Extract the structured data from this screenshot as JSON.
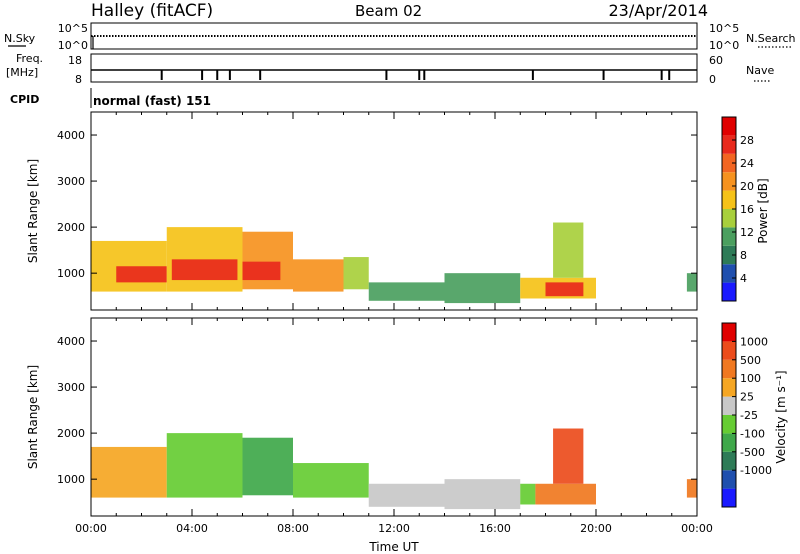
{
  "header": {
    "station": "Halley (fitACF)",
    "beam": "Beam 02",
    "date": "23/Apr/2014"
  },
  "nsky_panel": {
    "left_label": "N.Sky",
    "left_ticks": [
      "10^5",
      "10^0"
    ],
    "right_label": "N.Search",
    "right_ticks": [
      "10^5",
      "10^0"
    ]
  },
  "freq_panel": {
    "left_label_1": "Freq.",
    "left_label_2": "[MHz]",
    "left_ticks": [
      "18",
      "8"
    ],
    "right_label": "Nave",
    "right_ticks": [
      "60",
      "0"
    ]
  },
  "cpid": {
    "label": "CPID",
    "value": "normal (fast) 151"
  },
  "colors": {
    "power": [
      "#1a1aff",
      "#1f4fae",
      "#2e7b57",
      "#4b9f5f",
      "#a8cf3c",
      "#f5c218",
      "#f6921f",
      "#f26522",
      "#e8291c",
      "#e00000"
    ],
    "velocity": [
      "#1a1aff",
      "#1f4fae",
      "#2e7b57",
      "#3fa84a",
      "#66cc33",
      "#c8c8c8",
      "#f5a623",
      "#f07820",
      "#ec4c1c",
      "#e00000"
    ]
  },
  "chart_data": [
    {
      "type": "heatmap",
      "name": "power",
      "ylabel": "Slant Range [km]",
      "ylim": [
        200,
        4500
      ],
      "yticks": [
        "1000",
        "2000",
        "3000",
        "4000"
      ],
      "xlim": [
        0,
        24
      ],
      "colorbar": {
        "label": "Power [dB]",
        "ticks": [
          "28",
          "24",
          "20",
          "16",
          "12",
          "8",
          "4"
        ],
        "range": [
          0,
          32
        ]
      },
      "regions": [
        {
          "t0": 0.0,
          "t1": 3.0,
          "r0": 600,
          "r1": 1700,
          "level": 5
        },
        {
          "t0": 1.0,
          "t1": 3.0,
          "r0": 800,
          "r1": 1150,
          "level": 8
        },
        {
          "t0": 3.0,
          "t1": 6.0,
          "r0": 600,
          "r1": 2000,
          "level": 5
        },
        {
          "t0": 3.2,
          "t1": 5.8,
          "r0": 850,
          "r1": 1300,
          "level": 8
        },
        {
          "t0": 6.0,
          "t1": 8.0,
          "r0": 650,
          "r1": 1900,
          "level": 6
        },
        {
          "t0": 6.0,
          "t1": 7.5,
          "r0": 850,
          "r1": 1250,
          "level": 8
        },
        {
          "t0": 8.0,
          "t1": 10.0,
          "r0": 600,
          "r1": 1300,
          "level": 6
        },
        {
          "t0": 10.0,
          "t1": 11.0,
          "r0": 650,
          "r1": 1350,
          "level": 4
        },
        {
          "t0": 11.0,
          "t1": 14.0,
          "r0": 400,
          "r1": 800,
          "level": 3
        },
        {
          "t0": 14.0,
          "t1": 17.0,
          "r0": 350,
          "r1": 1000,
          "level": 3
        },
        {
          "t0": 17.0,
          "t1": 20.0,
          "r0": 450,
          "r1": 900,
          "level": 5
        },
        {
          "t0": 18.0,
          "t1": 19.5,
          "r0": 500,
          "r1": 800,
          "level": 8
        },
        {
          "t0": 18.3,
          "t1": 19.5,
          "r0": 900,
          "r1": 2100,
          "level": 4
        },
        {
          "t0": 23.6,
          "t1": 24.0,
          "r0": 600,
          "r1": 1000,
          "level": 3
        }
      ]
    },
    {
      "type": "heatmap",
      "name": "velocity",
      "ylabel": "Slant Range [km]",
      "xlabel": "Time UT",
      "ylim": [
        200,
        4500
      ],
      "yticks": [
        "1000",
        "2000",
        "3000",
        "4000"
      ],
      "xlim": [
        0,
        24
      ],
      "xticks": [
        "00:00",
        "04:00",
        "08:00",
        "12:00",
        "16:00",
        "20:00",
        "00:00"
      ],
      "colorbar": {
        "label": "Velocity [m s⁻¹]",
        "ticks": [
          "1000",
          "500",
          "100",
          "25",
          "-25",
          "-100",
          "-500",
          "-1000"
        ]
      },
      "regions": [
        {
          "t0": 0.0,
          "t1": 3.0,
          "r0": 600,
          "r1": 1700,
          "level": 6
        },
        {
          "t0": 3.0,
          "t1": 6.0,
          "r0": 600,
          "r1": 2000,
          "level": 4
        },
        {
          "t0": 6.0,
          "t1": 8.0,
          "r0": 650,
          "r1": 1900,
          "level": 3
        },
        {
          "t0": 8.0,
          "t1": 11.0,
          "r0": 600,
          "r1": 1350,
          "level": 4
        },
        {
          "t0": 11.0,
          "t1": 14.0,
          "r0": 400,
          "r1": 900,
          "level": 5
        },
        {
          "t0": 14.0,
          "t1": 17.0,
          "r0": 350,
          "r1": 1000,
          "level": 5
        },
        {
          "t0": 17.0,
          "t1": 17.6,
          "r0": 450,
          "r1": 900,
          "level": 4
        },
        {
          "t0": 17.6,
          "t1": 20.0,
          "r0": 450,
          "r1": 900,
          "level": 7
        },
        {
          "t0": 18.3,
          "t1": 19.5,
          "r0": 900,
          "r1": 2100,
          "level": 8
        },
        {
          "t0": 23.6,
          "t1": 24.0,
          "r0": 600,
          "r1": 1000,
          "level": 7
        }
      ]
    }
  ]
}
